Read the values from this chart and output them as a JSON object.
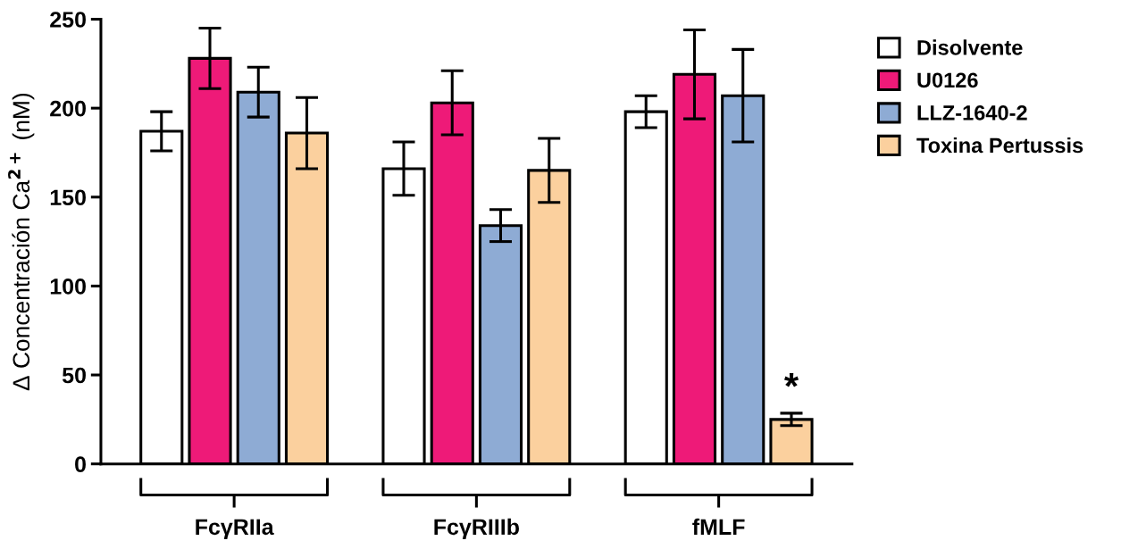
{
  "chart_data": {
    "type": "bar",
    "ylabel": "Δ Concentración Ca$^{2+}$ (nM)",
    "categories": [
      "FcγRIIa",
      "FcγRIIIb",
      "fMLF"
    ],
    "series": [
      {
        "name": "Disolvente",
        "color": "#ffffff",
        "values": [
          187,
          166,
          198
        ],
        "errors": [
          11,
          15,
          9
        ]
      },
      {
        "name": "U0126",
        "color": "#ee1a78",
        "values": [
          228,
          203,
          219
        ],
        "errors": [
          17,
          18,
          25
        ]
      },
      {
        "name": "LLZ-1640-2",
        "color": "#8eabd4",
        "values": [
          209,
          134,
          207
        ],
        "errors": [
          14,
          9,
          26
        ]
      },
      {
        "name": "Toxina Pertussis",
        "color": "#fbd09e",
        "values": [
          186,
          165,
          25
        ],
        "errors": [
          20,
          18,
          3.5
        ]
      }
    ],
    "ylim": [
      0,
      250
    ],
    "yticks": [
      0,
      50,
      100,
      150,
      200,
      250
    ],
    "annotations": [
      {
        "text": "*",
        "x": "fMLF",
        "y": 42
      }
    ],
    "grid": false,
    "legend": "top right"
  }
}
